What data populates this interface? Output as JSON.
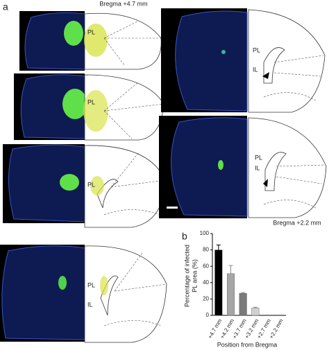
{
  "figure": {
    "panel_a": "a",
    "panel_b": "b",
    "bregma_top": "Bregma +4.7 mm",
    "bregma_bottom": "Bregma +2.2 mm",
    "region_labels": [
      "PL",
      "PL",
      "PL",
      "PL",
      "IL",
      "PL",
      "IL",
      "PL",
      "IL"
    ]
  },
  "chart_data": {
    "type": "bar",
    "ylabel": [
      "Percentage of infected",
      "PL area (%)"
    ],
    "xlabel": "Position from Bregma",
    "categories": [
      "+4.7 mm",
      "+4.2 mm",
      "+3.7 mm",
      "+3.2 mm",
      "+2.7 mm",
      "+2.2 mm"
    ],
    "values": [
      80,
      51,
      27,
      9,
      0,
      0
    ],
    "errors": [
      6,
      10,
      1,
      1,
      0,
      0
    ],
    "colors": [
      "#000000",
      "#a6a6a6",
      "#7a7a7a",
      "#d0d0d0",
      "#e0e0e0",
      "#e0e0e0"
    ],
    "ylim": [
      0,
      100
    ],
    "yticks": [
      0,
      20,
      40,
      60,
      80,
      100
    ]
  }
}
